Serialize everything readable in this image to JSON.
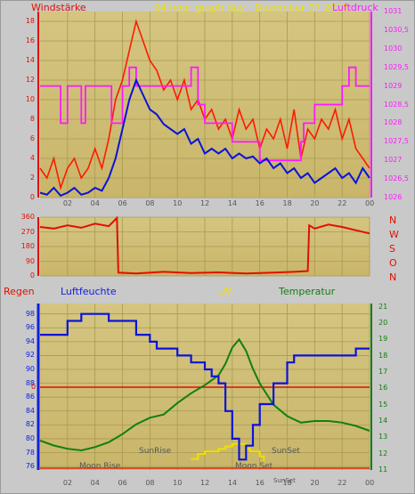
{
  "header": {
    "left_label": "Windstärke",
    "title": "24 hour graph day : Dezember 07 2015",
    "right_label": "Luftdruck"
  },
  "direction_letters": [
    "N",
    "W",
    "S",
    "O",
    "N"
  ],
  "bottom_labels": {
    "regen": "Regen",
    "luftfeuchte": "Luftfeuchte",
    "uv": "UV",
    "temperatur": "Temperatur",
    "zero_marker": "0"
  },
  "annotations": {
    "moon_rise": "Moon Rise",
    "sun_rise": "SunRise",
    "moon_set": "Moon Set",
    "sun_set": "SunSet",
    "sun_set_small": "SunSet"
  },
  "colors": {
    "plot_bg": "#c9b66a",
    "plot_bg_top": "#d4c581",
    "grid": "#a89a50",
    "wind_gust": "#ff1a00",
    "wind_avg": "#0a14d8",
    "pressure": "#ff19ff",
    "direction": "#e01000",
    "humidity": "#0a14d8",
    "temperature": "#108010",
    "rain_zero": "#e01000",
    "uv": "#f0e000",
    "red_text": "#e01000",
    "yellow_text": "#f0e000",
    "green_text": "#108010",
    "blue_text": "#1020e0",
    "magenta_text": "#ff19ff",
    "dark_text": "#555555"
  },
  "chart_data": [
    {
      "type": "line",
      "name": "wind-pressure",
      "x_ticks": [
        "02",
        "04",
        "06",
        "08",
        "10",
        "12",
        "14",
        "16",
        "18",
        "20",
        "22",
        "00"
      ],
      "y_left_ticks": [
        "0",
        "2",
        "4",
        "6",
        "8",
        "10",
        "12",
        "14",
        "16",
        "18"
      ],
      "y_right_ticks": [
        "1026",
        "1026,5",
        "1027",
        "1027,5",
        "1028",
        "1028,5",
        "1029",
        "1029,5",
        "1030",
        "1030,5",
        "1031"
      ],
      "ylim_left": [
        0,
        19
      ],
      "ylim_right": [
        1026,
        1031
      ],
      "xlim": [
        0,
        24
      ],
      "series": [
        {
          "axis": "left",
          "x": [
            0,
            0.5,
            1,
            1.5,
            2,
            2.5,
            3,
            3.5,
            4,
            4.5,
            5,
            5.5,
            6,
            6.5,
            7,
            7.5,
            8,
            8.5,
            9,
            9.5,
            10,
            10.5,
            11,
            11.5,
            12,
            12.5,
            13,
            13.5,
            14,
            14.5,
            15,
            15.5,
            16,
            16.5,
            17,
            17.5,
            18,
            18.5,
            19,
            19.5,
            20,
            20.5,
            21,
            21.5,
            22,
            22.5,
            23,
            23.5,
            24
          ],
          "values": [
            3,
            2,
            4,
            1,
            3,
            4,
            2,
            3,
            5,
            3,
            6,
            10,
            12,
            15,
            18,
            16,
            14,
            13,
            11,
            12,
            10,
            12,
            9,
            10,
            8,
            9,
            7,
            8,
            6,
            9,
            7,
            8,
            5,
            7,
            6,
            8,
            5,
            9,
            4,
            7,
            6,
            8,
            7,
            9,
            6,
            8,
            5,
            4,
            3
          ]
        },
        {
          "axis": "left",
          "x": [
            0,
            0.5,
            1,
            1.5,
            2,
            2.5,
            3,
            3.5,
            4,
            4.5,
            5,
            5.5,
            6,
            6.5,
            7,
            7.5,
            8,
            8.5,
            9,
            9.5,
            10,
            10.5,
            11,
            11.5,
            12,
            12.5,
            13,
            13.5,
            14,
            14.5,
            15,
            15.5,
            16,
            16.5,
            17,
            17.5,
            18,
            18.5,
            19,
            19.5,
            20,
            20.5,
            21,
            21.5,
            22,
            22.5,
            23,
            23.5,
            24
          ],
          "values": [
            0.5,
            0.3,
            1,
            0.2,
            0.5,
            1,
            0.3,
            0.5,
            1,
            0.7,
            2,
            4,
            7,
            10,
            12,
            10.5,
            9,
            8.5,
            7.5,
            7,
            6.5,
            7,
            5.5,
            6,
            4.5,
            5,
            4.5,
            5,
            4,
            4.5,
            4,
            4.2,
            3.5,
            4,
            3,
            3.5,
            2.5,
            3,
            2,
            2.5,
            1.5,
            2,
            2.5,
            3,
            2,
            2.5,
            1.5,
            3,
            2
          ]
        },
        {
          "axis": "right",
          "x": [
            0,
            1,
            1.5,
            2,
            2.5,
            3,
            3.3,
            4,
            5,
            5.2,
            6,
            6.5,
            7,
            8,
            10,
            11,
            11.5,
            12,
            14,
            16,
            18,
            19,
            19.2,
            20,
            21,
            22,
            22.5,
            23,
            24
          ],
          "values": [
            1029,
            1029,
            1028,
            1029,
            1029,
            1028,
            1029,
            1029,
            1029,
            1028,
            1029,
            1029.5,
            1029,
            1029,
            1029,
            1029.5,
            1028.5,
            1028,
            1027.5,
            1027,
            1027,
            1027.5,
            1028,
            1028.5,
            1028.5,
            1029,
            1029.5,
            1029,
            1029
          ]
        }
      ]
    },
    {
      "type": "line",
      "name": "wind-direction",
      "y_ticks": [
        "0",
        "90",
        "180",
        "270",
        "360"
      ],
      "ylim": [
        0,
        360
      ],
      "xlim": [
        0,
        24
      ],
      "series": [
        {
          "x": [
            0,
            1,
            2,
            3,
            4,
            5,
            5.6,
            5.7,
            7,
            9,
            11,
            13,
            15,
            17,
            18.5,
            19.5,
            19.6,
            20,
            21,
            22,
            23,
            24
          ],
          "values": [
            300,
            290,
            310,
            295,
            320,
            305,
            355,
            20,
            15,
            25,
            18,
            22,
            15,
            20,
            25,
            30,
            310,
            290,
            315,
            300,
            280,
            260
          ]
        }
      ]
    },
    {
      "type": "line",
      "name": "humidity-temperature-uv",
      "y_left_ticks": [
        "76",
        "78",
        "80",
        "82",
        "84",
        "86",
        "88",
        "90",
        "92",
        "94",
        "96",
        "98"
      ],
      "y_right_ticks": [
        "11",
        "12",
        "13",
        "14",
        "15",
        "16",
        "17",
        "18",
        "19",
        "20",
        "21"
      ],
      "ylim_left": [
        75.5,
        99.5
      ],
      "ylim_right": [
        11,
        21.2
      ],
      "xlim": [
        0,
        24
      ],
      "series": [
        {
          "axis": "left",
          "x": [
            0,
            1,
            2,
            3,
            4,
            5,
            6,
            7,
            8,
            8.5,
            9,
            10,
            11,
            12,
            12.5,
            13,
            13.5,
            14,
            14.5,
            15,
            15.5,
            16,
            17,
            18,
            18.5,
            19,
            20,
            21,
            22,
            23,
            24
          ],
          "values": [
            95,
            95,
            97,
            98,
            98,
            97,
            97,
            95,
            94,
            93,
            93,
            92,
            91,
            90,
            89,
            88,
            84,
            80,
            77,
            79,
            82,
            85,
            88,
            91,
            92,
            92,
            92,
            92,
            92,
            93,
            93
          ]
        },
        {
          "axis": "right",
          "x": [
            0,
            1,
            2,
            3,
            4,
            5,
            6,
            7,
            8,
            9,
            10,
            11,
            12,
            13,
            13.5,
            14,
            14.5,
            15,
            15.5,
            16,
            17,
            18,
            19,
            20,
            21,
            22,
            23,
            24
          ],
          "values": [
            12.8,
            12.5,
            12.3,
            12.2,
            12.4,
            12.7,
            13.2,
            13.8,
            14.2,
            14.4,
            15.1,
            15.7,
            16.2,
            16.8,
            17.5,
            18.5,
            19,
            18.3,
            17.2,
            16.3,
            15,
            14.3,
            13.9,
            14,
            14,
            13.9,
            13.7,
            13.4
          ]
        },
        {
          "axis": "uv",
          "x": [
            11,
            11.5,
            12,
            13,
            13.5,
            14,
            14.2,
            15,
            15.3,
            16,
            16.3
          ],
          "values": [
            0.3,
            0.5,
            0.6,
            0.7,
            0.8,
            0.9,
            0.9,
            0.7,
            0.6,
            0.4,
            0.2
          ]
        }
      ]
    }
  ]
}
